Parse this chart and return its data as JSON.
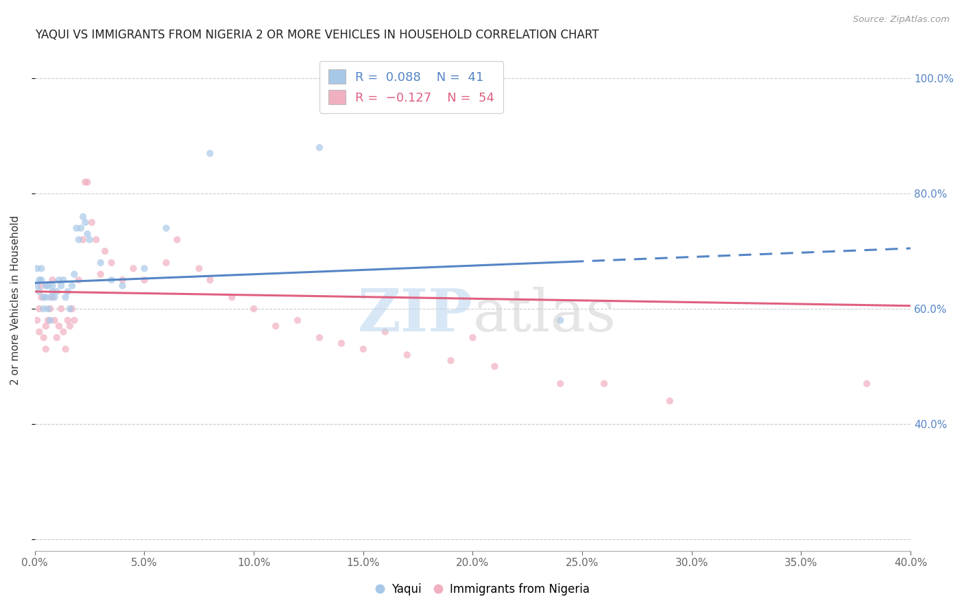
{
  "title": "YAQUI VS IMMIGRANTS FROM NIGERIA 2 OR MORE VEHICLES IN HOUSEHOLD CORRELATION CHART",
  "source": "Source: ZipAtlas.com",
  "ylabel": "2 or more Vehicles in Household",
  "xlim": [
    0.0,
    0.4
  ],
  "ylim": [
    0.18,
    1.05
  ],
  "xticks": [
    0.0,
    0.05,
    0.1,
    0.15,
    0.2,
    0.25,
    0.3,
    0.35,
    0.4
  ],
  "xticklabels": [
    "0.0%",
    "5.0%",
    "10.0%",
    "15.0%",
    "20.0%",
    "25.0%",
    "30.0%",
    "35.0%",
    "40.0%"
  ],
  "yticks_left": [
    0.2,
    0.4,
    0.6,
    0.8,
    1.0
  ],
  "right_yticks": [
    0.4,
    0.6,
    0.8,
    1.0
  ],
  "right_yticklabels": [
    "40.0%",
    "60.0%",
    "80.0%",
    "100.0%"
  ],
  "blue_color": "#a8c8e8",
  "pink_color": "#f0b0c0",
  "trendline_blue": "#5585c5",
  "trendline_pink": "#e06080",
  "scatter_alpha": 0.7,
  "scatter_size": 55,
  "blue_x": [
    0.001,
    0.001,
    0.002,
    0.002,
    0.003,
    0.003,
    0.004,
    0.004,
    0.005,
    0.005,
    0.006,
    0.006,
    0.007,
    0.007,
    0.008,
    0.008,
    0.009,
    0.01,
    0.011,
    0.012,
    0.013,
    0.014,
    0.015,
    0.016,
    0.017,
    0.018,
    0.019,
    0.02,
    0.021,
    0.022,
    0.023,
    0.024,
    0.025,
    0.03,
    0.035,
    0.04,
    0.05,
    0.06,
    0.08,
    0.13,
    0.24
  ],
  "blue_y": [
    0.67,
    0.64,
    0.65,
    0.63,
    0.67,
    0.65,
    0.62,
    0.6,
    0.62,
    0.64,
    0.64,
    0.6,
    0.62,
    0.58,
    0.63,
    0.64,
    0.62,
    0.63,
    0.65,
    0.64,
    0.65,
    0.62,
    0.63,
    0.6,
    0.64,
    0.66,
    0.74,
    0.72,
    0.74,
    0.76,
    0.75,
    0.73,
    0.72,
    0.68,
    0.65,
    0.64,
    0.67,
    0.74,
    0.87,
    0.88,
    0.58
  ],
  "pink_x": [
    0.001,
    0.002,
    0.002,
    0.003,
    0.003,
    0.004,
    0.005,
    0.005,
    0.006,
    0.007,
    0.008,
    0.008,
    0.009,
    0.01,
    0.011,
    0.012,
    0.013,
    0.014,
    0.015,
    0.016,
    0.017,
    0.018,
    0.02,
    0.022,
    0.023,
    0.024,
    0.026,
    0.028,
    0.03,
    0.032,
    0.035,
    0.04,
    0.045,
    0.05,
    0.06,
    0.065,
    0.075,
    0.08,
    0.09,
    0.1,
    0.11,
    0.12,
    0.13,
    0.14,
    0.15,
    0.16,
    0.17,
    0.19,
    0.2,
    0.21,
    0.24,
    0.26,
    0.29,
    0.38
  ],
  "pink_y": [
    0.58,
    0.6,
    0.56,
    0.62,
    0.64,
    0.55,
    0.57,
    0.53,
    0.58,
    0.6,
    0.62,
    0.65,
    0.58,
    0.55,
    0.57,
    0.6,
    0.56,
    0.53,
    0.58,
    0.57,
    0.6,
    0.58,
    0.65,
    0.72,
    0.82,
    0.82,
    0.75,
    0.72,
    0.66,
    0.7,
    0.68,
    0.65,
    0.67,
    0.65,
    0.68,
    0.72,
    0.67,
    0.65,
    0.62,
    0.6,
    0.57,
    0.58,
    0.55,
    0.54,
    0.53,
    0.56,
    0.52,
    0.51,
    0.55,
    0.5,
    0.47,
    0.47,
    0.44,
    0.47
  ],
  "blue_trendline_x_solid_end": 0.245,
  "blue_trendline_intercept": 0.645,
  "blue_trendline_slope": 0.15,
  "pink_trendline_intercept": 0.63,
  "pink_trendline_slope": -0.062
}
